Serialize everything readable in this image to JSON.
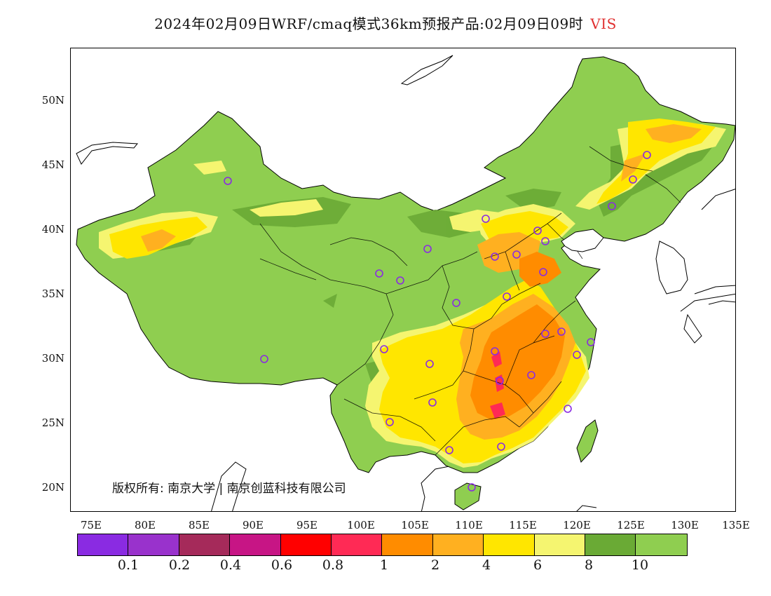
{
  "title": {
    "text": "2024年02月09日WRF/cmaq模式36km预报产品:02月09日09时",
    "variable": "VIS"
  },
  "map": {
    "lat_ticks": [
      "50N",
      "45N",
      "40N",
      "35N",
      "30N",
      "25N",
      "20N"
    ],
    "lon_ticks": [
      "75E",
      "80E",
      "85E",
      "90E",
      "95E",
      "100E",
      "105E",
      "110E",
      "115E",
      "120E",
      "125E",
      "130E",
      "135E"
    ],
    "copyright": "版权所有: 南京大学 | 南京创蓝科技有限公司",
    "background_color": "#ffffff",
    "station_marker_color": "#8a2be2"
  },
  "legend": {
    "colors": [
      "#8a2be2",
      "#9932cc",
      "#a52a5a",
      "#c71585",
      "#ff0000",
      "#ff2a55",
      "#ff8c00",
      "#ffb020",
      "#ffe600",
      "#f5f570",
      "#6aaa35",
      "#8fce50"
    ],
    "labels": [
      "0.1",
      "0.2",
      "0.4",
      "0.6",
      "0.8",
      "1",
      "2",
      "4",
      "6",
      "8",
      "10"
    ]
  }
}
